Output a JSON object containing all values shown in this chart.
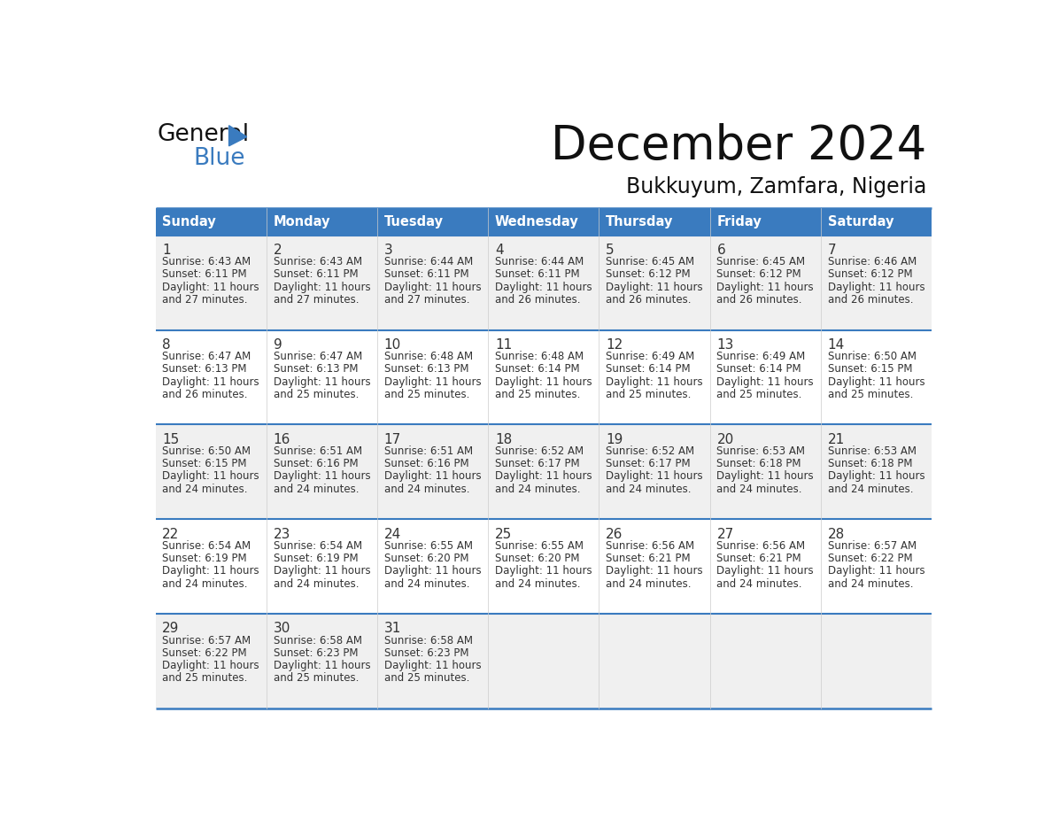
{
  "title": "December 2024",
  "subtitle": "Bukkuyum, Zamfara, Nigeria",
  "header_color": "#3a7bbf",
  "header_text_color": "#ffffff",
  "cell_bg_odd": "#f0f0f0",
  "cell_bg_even": "#ffffff",
  "border_color": "#3a7bbf",
  "sep_line_color": "#3a7bbf",
  "text_color": "#333333",
  "days_of_week": [
    "Sunday",
    "Monday",
    "Tuesday",
    "Wednesday",
    "Thursday",
    "Friday",
    "Saturday"
  ],
  "weeks": [
    [
      {
        "day": 1,
        "sunrise": "6:43 AM",
        "sunset": "6:11 PM",
        "daylight_min": "and 27 minutes."
      },
      {
        "day": 2,
        "sunrise": "6:43 AM",
        "sunset": "6:11 PM",
        "daylight_min": "and 27 minutes."
      },
      {
        "day": 3,
        "sunrise": "6:44 AM",
        "sunset": "6:11 PM",
        "daylight_min": "and 27 minutes."
      },
      {
        "day": 4,
        "sunrise": "6:44 AM",
        "sunset": "6:11 PM",
        "daylight_min": "and 26 minutes."
      },
      {
        "day": 5,
        "sunrise": "6:45 AM",
        "sunset": "6:12 PM",
        "daylight_min": "and 26 minutes."
      },
      {
        "day": 6,
        "sunrise": "6:45 AM",
        "sunset": "6:12 PM",
        "daylight_min": "and 26 minutes."
      },
      {
        "day": 7,
        "sunrise": "6:46 AM",
        "sunset": "6:12 PM",
        "daylight_min": "and 26 minutes."
      }
    ],
    [
      {
        "day": 8,
        "sunrise": "6:47 AM",
        "sunset": "6:13 PM",
        "daylight_min": "and 26 minutes."
      },
      {
        "day": 9,
        "sunrise": "6:47 AM",
        "sunset": "6:13 PM",
        "daylight_min": "and 25 minutes."
      },
      {
        "day": 10,
        "sunrise": "6:48 AM",
        "sunset": "6:13 PM",
        "daylight_min": "and 25 minutes."
      },
      {
        "day": 11,
        "sunrise": "6:48 AM",
        "sunset": "6:14 PM",
        "daylight_min": "and 25 minutes."
      },
      {
        "day": 12,
        "sunrise": "6:49 AM",
        "sunset": "6:14 PM",
        "daylight_min": "and 25 minutes."
      },
      {
        "day": 13,
        "sunrise": "6:49 AM",
        "sunset": "6:14 PM",
        "daylight_min": "and 25 minutes."
      },
      {
        "day": 14,
        "sunrise": "6:50 AM",
        "sunset": "6:15 PM",
        "daylight_min": "and 25 minutes."
      }
    ],
    [
      {
        "day": 15,
        "sunrise": "6:50 AM",
        "sunset": "6:15 PM",
        "daylight_min": "and 24 minutes."
      },
      {
        "day": 16,
        "sunrise": "6:51 AM",
        "sunset": "6:16 PM",
        "daylight_min": "and 24 minutes."
      },
      {
        "day": 17,
        "sunrise": "6:51 AM",
        "sunset": "6:16 PM",
        "daylight_min": "and 24 minutes."
      },
      {
        "day": 18,
        "sunrise": "6:52 AM",
        "sunset": "6:17 PM",
        "daylight_min": "and 24 minutes."
      },
      {
        "day": 19,
        "sunrise": "6:52 AM",
        "sunset": "6:17 PM",
        "daylight_min": "and 24 minutes."
      },
      {
        "day": 20,
        "sunrise": "6:53 AM",
        "sunset": "6:18 PM",
        "daylight_min": "and 24 minutes."
      },
      {
        "day": 21,
        "sunrise": "6:53 AM",
        "sunset": "6:18 PM",
        "daylight_min": "and 24 minutes."
      }
    ],
    [
      {
        "day": 22,
        "sunrise": "6:54 AM",
        "sunset": "6:19 PM",
        "daylight_min": "and 24 minutes."
      },
      {
        "day": 23,
        "sunrise": "6:54 AM",
        "sunset": "6:19 PM",
        "daylight_min": "and 24 minutes."
      },
      {
        "day": 24,
        "sunrise": "6:55 AM",
        "sunset": "6:20 PM",
        "daylight_min": "and 24 minutes."
      },
      {
        "day": 25,
        "sunrise": "6:55 AM",
        "sunset": "6:20 PM",
        "daylight_min": "and 24 minutes."
      },
      {
        "day": 26,
        "sunrise": "6:56 AM",
        "sunset": "6:21 PM",
        "daylight_min": "and 24 minutes."
      },
      {
        "day": 27,
        "sunrise": "6:56 AM",
        "sunset": "6:21 PM",
        "daylight_min": "and 24 minutes."
      },
      {
        "day": 28,
        "sunrise": "6:57 AM",
        "sunset": "6:22 PM",
        "daylight_min": "and 24 minutes."
      }
    ],
    [
      {
        "day": 29,
        "sunrise": "6:57 AM",
        "sunset": "6:22 PM",
        "daylight_min": "and 25 minutes."
      },
      {
        "day": 30,
        "sunrise": "6:58 AM",
        "sunset": "6:23 PM",
        "daylight_min": "and 25 minutes."
      },
      {
        "day": 31,
        "sunrise": "6:58 AM",
        "sunset": "6:23 PM",
        "daylight_min": "and 25 minutes."
      },
      null,
      null,
      null,
      null
    ]
  ]
}
